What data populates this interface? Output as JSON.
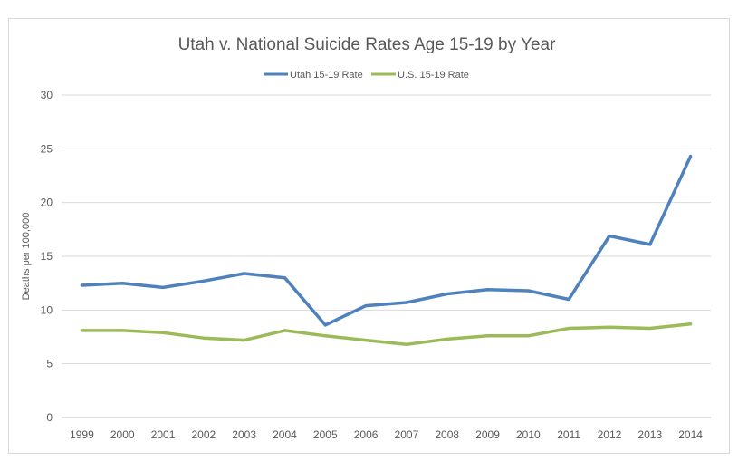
{
  "chart_data": {
    "type": "line",
    "title": "Utah v. National Suicide Rates Age 15-19 by Year",
    "xlabel": "",
    "ylabel": "Deaths per 100,000",
    "categories": [
      "1999",
      "2000",
      "2001",
      "2002",
      "2003",
      "2004",
      "2005",
      "2006",
      "2007",
      "2008",
      "2009",
      "2010",
      "2011",
      "2012",
      "2013",
      "2014"
    ],
    "ylim": [
      0,
      30
    ],
    "yticks": [
      "0",
      "5",
      "10",
      "15",
      "20",
      "25",
      "30"
    ],
    "grid": true,
    "legend_position": "top-center",
    "series": [
      {
        "name": "Utah 15-19 Rate",
        "color": "#4f81bd",
        "values": [
          12.3,
          12.5,
          12.1,
          12.7,
          13.4,
          13.0,
          8.6,
          10.4,
          10.7,
          11.5,
          11.9,
          11.8,
          11.0,
          16.9,
          16.1,
          24.3
        ]
      },
      {
        "name": "U.S. 15-19 Rate",
        "color": "#9bbb59",
        "values": [
          8.1,
          8.1,
          7.9,
          7.4,
          7.2,
          8.1,
          7.6,
          7.2,
          6.8,
          7.3,
          7.6,
          7.6,
          8.3,
          8.4,
          8.3,
          8.7
        ]
      }
    ]
  }
}
